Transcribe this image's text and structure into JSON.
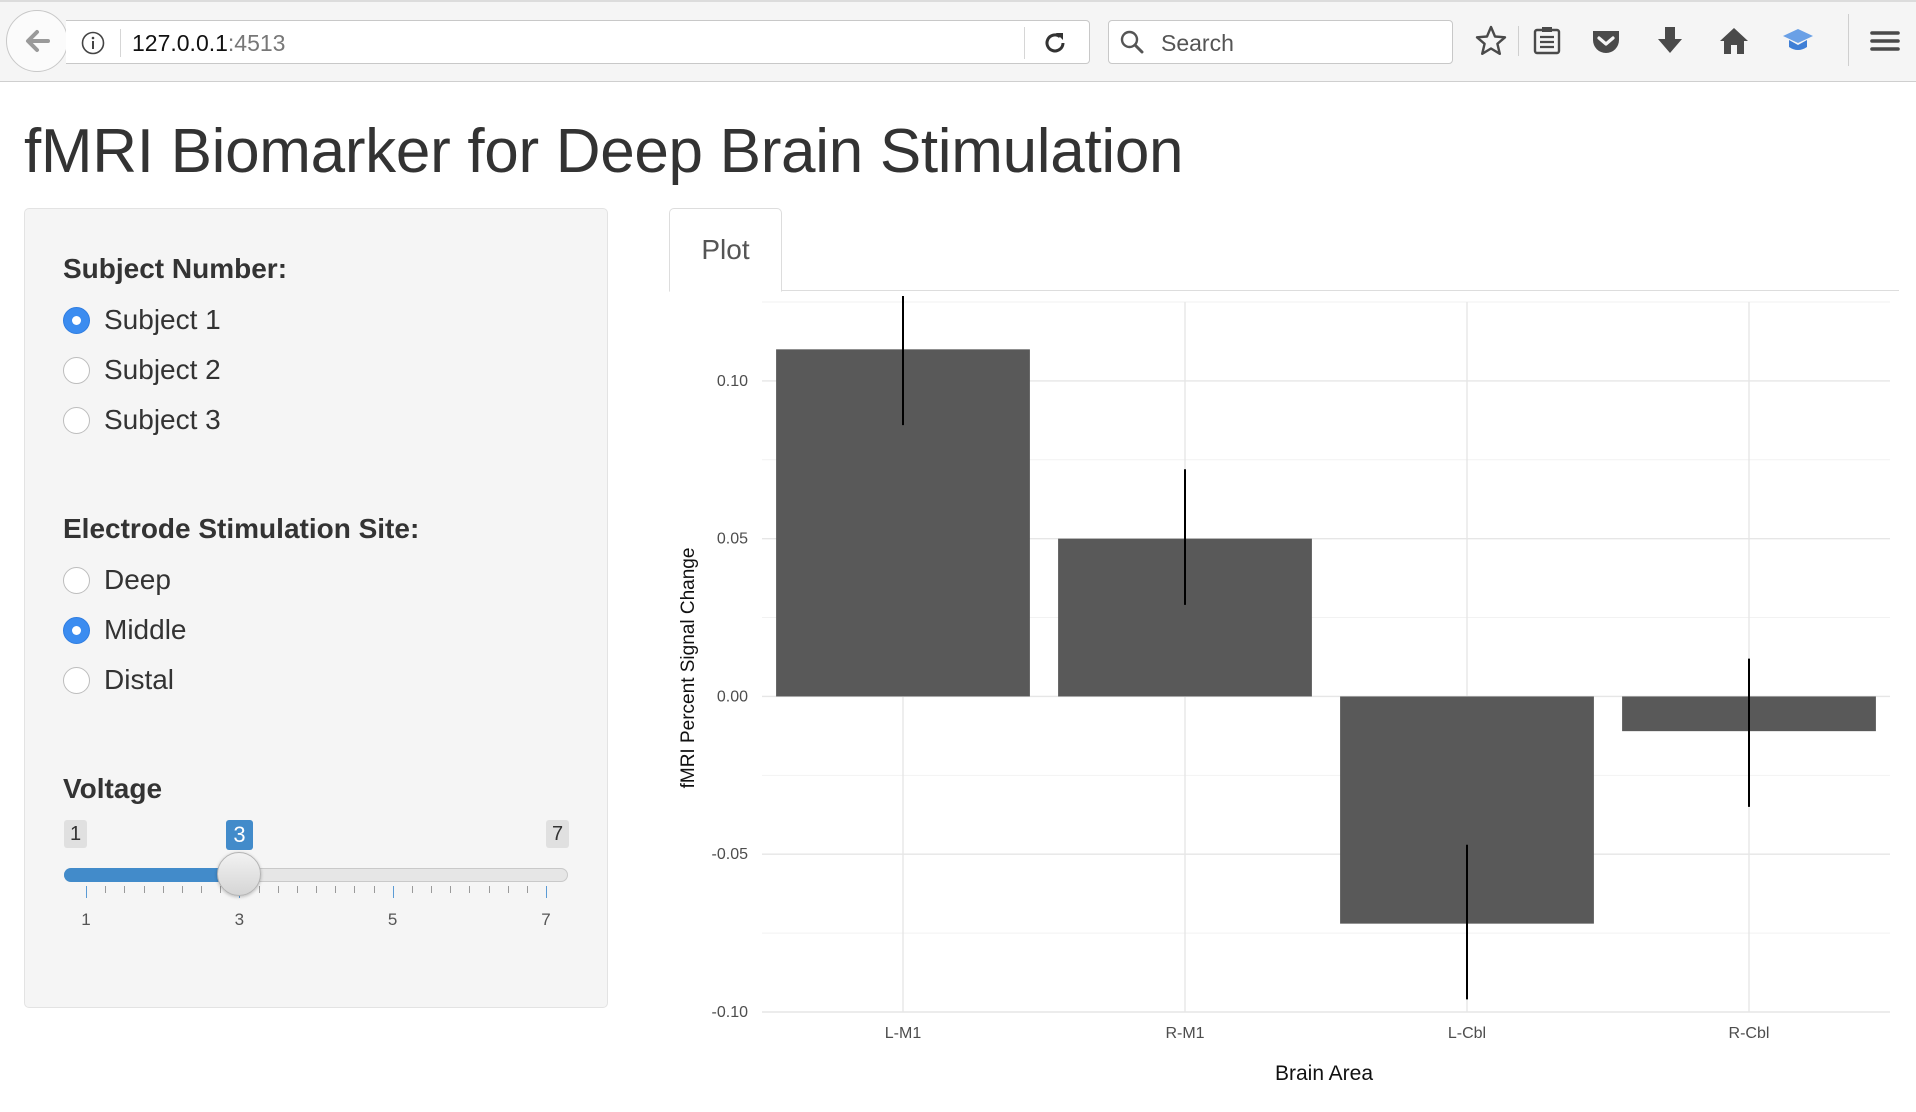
{
  "browser": {
    "url_host": "127.0.0.1",
    "url_port": ":4513",
    "search_placeholder": "Search"
  },
  "page": {
    "title": "fMRI Biomarker for Deep Brain Stimulation"
  },
  "sidebar": {
    "subject": {
      "label": "Subject Number:",
      "options": [
        "Subject 1",
        "Subject 2",
        "Subject 3"
      ],
      "selected": "Subject 1"
    },
    "site": {
      "label": "Electrode Stimulation Site:",
      "options": [
        "Deep",
        "Middle",
        "Distal"
      ],
      "selected": "Middle"
    },
    "voltage": {
      "label": "Voltage",
      "min": 1,
      "max": 7,
      "value": 3,
      "min_label": "1",
      "max_label": "7",
      "value_label": "3",
      "tick_labels": [
        "1",
        "3",
        "5",
        "7"
      ]
    }
  },
  "tabs": [
    {
      "label": "Plot",
      "active": true
    }
  ],
  "colors": {
    "accent": "#428bca",
    "bar": "#595959",
    "grid": "#ebebeb"
  },
  "chart_data": {
    "type": "bar",
    "categories": [
      "L-M1",
      "R-M1",
      "L-Cbl",
      "R-Cbl"
    ],
    "values": [
      0.11,
      0.05,
      -0.072,
      -0.011
    ],
    "error_low": [
      0.086,
      0.029,
      -0.096,
      -0.035
    ],
    "error_high": [
      0.134,
      0.072,
      -0.047,
      0.012
    ],
    "xlabel": "Brain Area",
    "ylabel": "fMRI Percent Signal Change",
    "yticks": [
      0.1,
      0.05,
      0.0,
      -0.05,
      -0.1
    ],
    "ytick_labels": [
      "0.10",
      "0.05",
      "0.00",
      "-0.05",
      "-0.10"
    ],
    "ylim": [
      -0.1,
      0.125
    ],
    "grid": true,
    "legend": "none"
  }
}
